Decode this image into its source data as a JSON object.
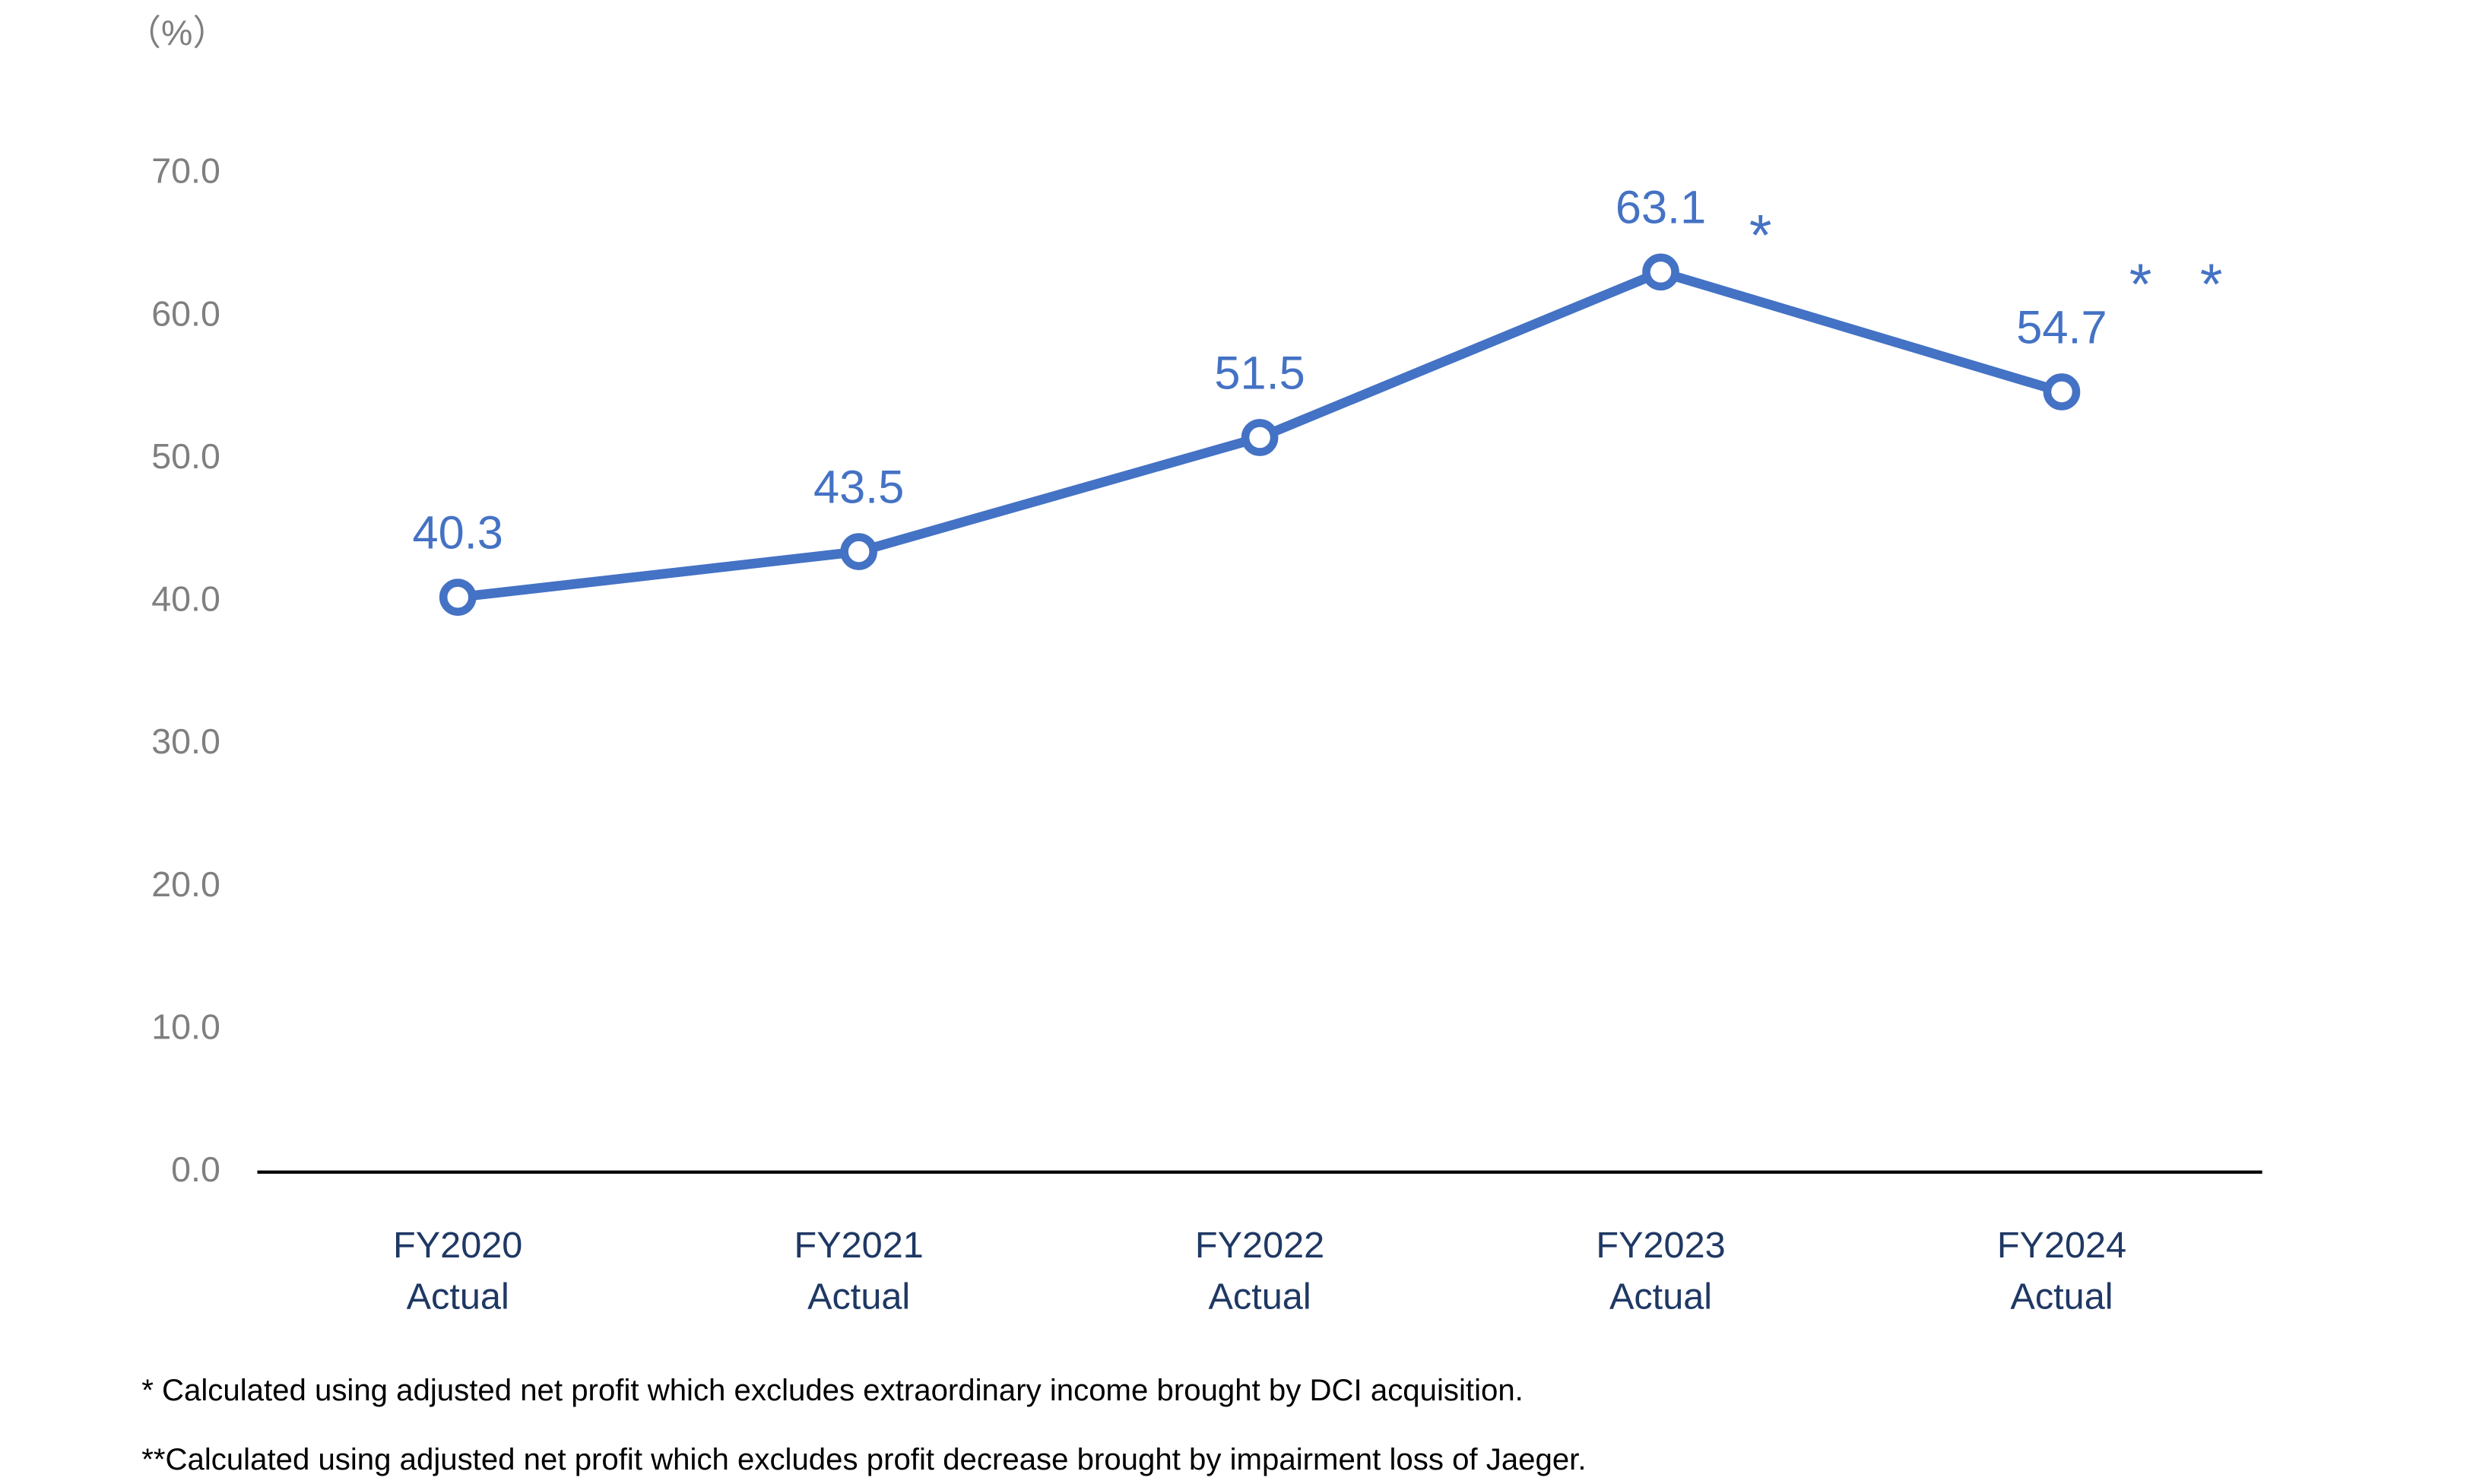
{
  "chart_data": {
    "type": "line",
    "y_unit_label": "（%）",
    "categories": [
      [
        "FY2020",
        "Actual"
      ],
      [
        "FY2021",
        "Actual"
      ],
      [
        "FY2022",
        "Actual"
      ],
      [
        "FY2023",
        "Actual"
      ],
      [
        "FY2024",
        "Actual"
      ]
    ],
    "series": [
      {
        "name": "Ratio",
        "color": "#4472c4",
        "values": [
          40.3,
          43.5,
          51.5,
          63.1,
          54.7
        ]
      }
    ],
    "annotations": [
      {
        "text": "*",
        "index": 3
      },
      {
        "text": "* *",
        "index": 4
      }
    ],
    "ylim": [
      0,
      70
    ],
    "yticks": [
      {
        "value": 0,
        "label": "0.0"
      },
      {
        "value": 10,
        "label": "10.0"
      },
      {
        "value": 20,
        "label": "20.0"
      },
      {
        "value": 30,
        "label": "30.0"
      },
      {
        "value": 40,
        "label": "40.0"
      },
      {
        "value": 50,
        "label": "50.0"
      },
      {
        "value": 60,
        "label": "60.0"
      },
      {
        "value": 70,
        "label": "70.0"
      }
    ],
    "footnotes": [
      "* Calculated using adjusted net profit which excludes extraordinary income brought by DCI acquisition.",
      "**Calculated using adjusted net profit which excludes profit decrease brought by impairment loss of Jaeger."
    ]
  }
}
